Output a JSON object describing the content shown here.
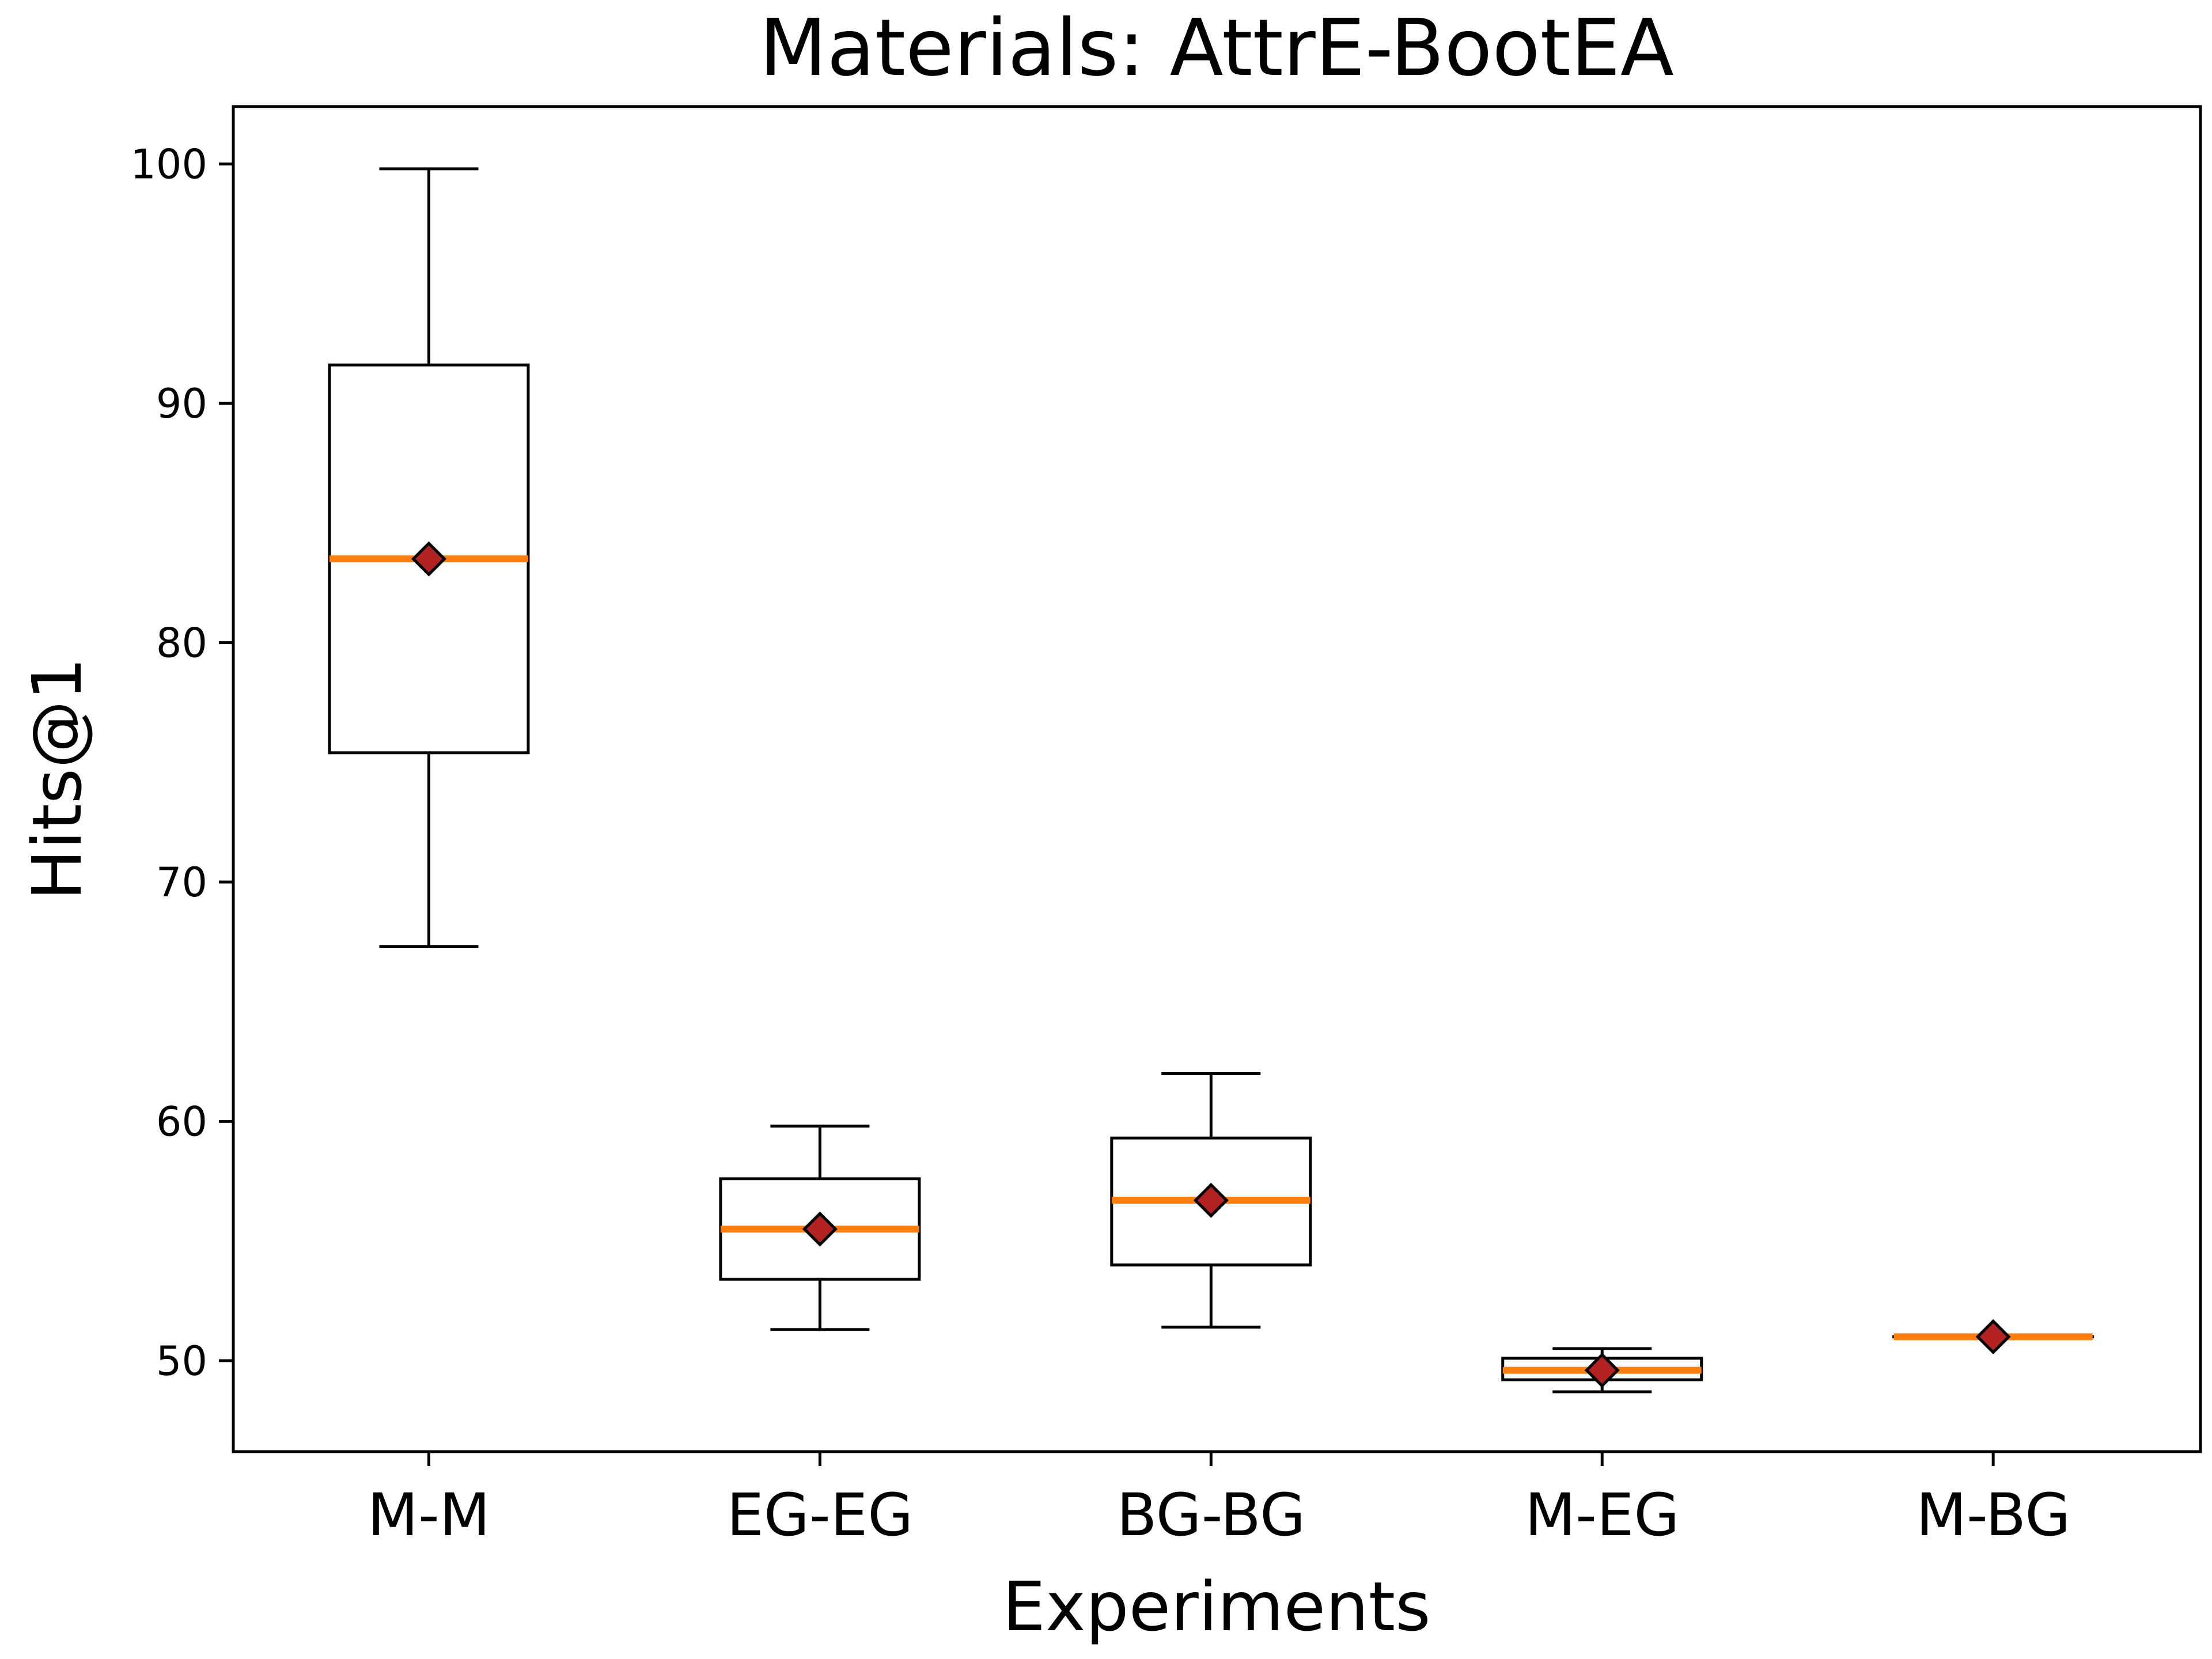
{
  "chart_data": {
    "type": "box",
    "title": "Materials: AttrE-BootEA",
    "xlabel": "Experiments",
    "ylabel": "Hits@1",
    "ylim": [
      46.2,
      102.4
    ],
    "yticks": [
      50,
      60,
      70,
      80,
      90,
      100
    ],
    "categories": [
      "M-M",
      "EG-EG",
      "BG-BG",
      "M-EG",
      "M-BG"
    ],
    "boxes": [
      {
        "name": "M-M",
        "whisker_low": 67.3,
        "q1": 75.4,
        "median": 83.5,
        "q3": 91.6,
        "whisker_high": 99.8,
        "mean": 83.5
      },
      {
        "name": "EG-EG",
        "whisker_low": 51.3,
        "q1": 53.4,
        "median": 55.5,
        "q3": 57.6,
        "whisker_high": 59.8,
        "mean": 55.5
      },
      {
        "name": "BG-BG",
        "whisker_low": 51.4,
        "q1": 54.0,
        "median": 56.7,
        "q3": 59.3,
        "whisker_high": 62.0,
        "mean": 56.7
      },
      {
        "name": "M-EG",
        "whisker_low": 48.7,
        "q1": 49.2,
        "median": 49.6,
        "q3": 50.1,
        "whisker_high": 50.5,
        "mean": 49.6
      },
      {
        "name": "M-BG",
        "whisker_low": 51.0,
        "q1": 51.0,
        "median": 51.0,
        "q3": 51.0,
        "whisker_high": 51.0,
        "mean": 51.0
      }
    ],
    "grid": false,
    "colors": {
      "box": "#000000",
      "median": "#ff7f0e",
      "mean_marker": "#b22222"
    }
  }
}
